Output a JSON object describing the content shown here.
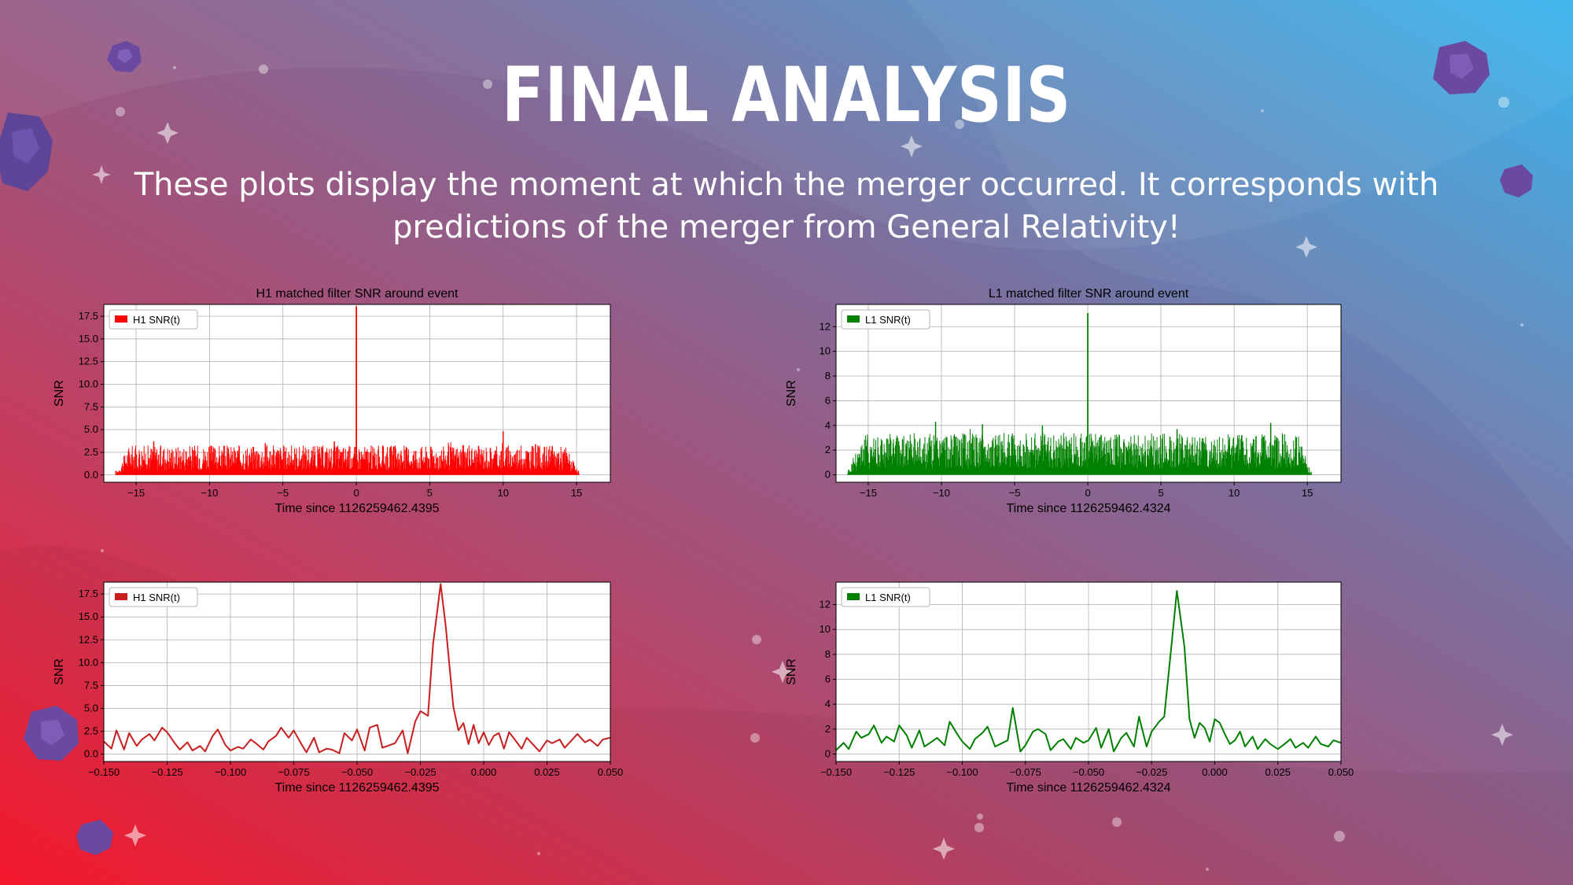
{
  "slide": {
    "title": "FINAL ANALYSIS",
    "subtitle": "These plots display the moment at which the merger occurred. It corresponds with predictions of the merger from General Relativity!"
  },
  "colors": {
    "h1": "#ff0000",
    "h1_zoom": "#c81e1e",
    "l1": "#008000",
    "text": "#ffffff"
  },
  "chart_data": [
    {
      "type": "area",
      "title": "H1 matched filter SNR around event",
      "xlabel": "Time since 1126259462.4395",
      "ylabel": "SNR",
      "legend": "H1 SNR(t)",
      "legend_position": "top-left",
      "grid": true,
      "xlim": [
        -17.2,
        17.3
      ],
      "ylim": [
        -0.8,
        18.8
      ],
      "xticks": [
        -15,
        -10,
        -5,
        0,
        5,
        10,
        15
      ],
      "xtick_labels": [
        "−15",
        "−10",
        "−5",
        "0",
        "5",
        "10",
        "15"
      ],
      "yticks": [
        0.0,
        2.5,
        5.0,
        7.5,
        10.0,
        12.5,
        15.0,
        17.5
      ],
      "ytick_labels": [
        "0.0",
        "2.5",
        "5.0",
        "7.5",
        "10.0",
        "12.5",
        "15.0",
        "17.5"
      ],
      "series": [
        {
          "name": "H1 SNR(t)",
          "noise_range": [
            -16.4,
            15.2
          ],
          "noise_typical_max": 3.2,
          "noise_peaks": [
            [
              -13.8,
              3.7
            ],
            [
              -6.2,
              3.5
            ],
            [
              -1.5,
              3.7
            ],
            [
              10.0,
              4.8
            ],
            [
              12.2,
              3.4
            ]
          ],
          "event_x": 0.0,
          "event_peak": 18.6
        }
      ]
    },
    {
      "type": "area",
      "title": "L1 matched filter SNR around event",
      "xlabel": "Time since 1126259462.4324",
      "ylabel": "SNR",
      "legend": "L1 SNR(t)",
      "legend_position": "top-left",
      "grid": true,
      "xlim": [
        -17.2,
        17.3
      ],
      "ylim": [
        -0.6,
        13.8
      ],
      "xticks": [
        -15,
        -10,
        -5,
        0,
        5,
        10,
        15
      ],
      "xtick_labels": [
        "−15",
        "−10",
        "−5",
        "0",
        "5",
        "10",
        "15"
      ],
      "yticks": [
        0,
        2,
        4,
        6,
        8,
        10,
        12
      ],
      "ytick_labels": [
        "0",
        "2",
        "4",
        "6",
        "8",
        "10",
        "12"
      ],
      "series": [
        {
          "name": "L1 SNR(t)",
          "noise_range": [
            -16.4,
            15.3
          ],
          "noise_typical_max": 3.3,
          "noise_peaks": [
            [
              -10.4,
              4.3
            ],
            [
              -7.2,
              4.1
            ],
            [
              -3.1,
              4.0
            ],
            [
              6.1,
              3.7
            ],
            [
              12.5,
              4.2
            ]
          ],
          "event_x": 0.0,
          "event_peak": 13.1
        }
      ]
    },
    {
      "type": "line",
      "title": "",
      "xlabel": "Time since 1126259462.4395",
      "ylabel": "SNR",
      "legend": "H1 SNR(t)",
      "legend_position": "top-left",
      "grid": true,
      "xlim": [
        -0.15,
        0.05
      ],
      "ylim": [
        -0.8,
        18.8
      ],
      "xticks": [
        -0.15,
        -0.125,
        -0.1,
        -0.075,
        -0.05,
        -0.025,
        0.0,
        0.025,
        0.05
      ],
      "xtick_labels": [
        "−0.150",
        "−0.125",
        "−0.100",
        "−0.075",
        "−0.050",
        "−0.025",
        "0.000",
        "0.025",
        "0.050"
      ],
      "yticks": [
        0.0,
        2.5,
        5.0,
        7.5,
        10.0,
        12.5,
        15.0,
        17.5
      ],
      "ytick_labels": [
        "0.0",
        "2.5",
        "5.0",
        "7.5",
        "10.0",
        "12.5",
        "15.0",
        "17.5"
      ],
      "series": [
        {
          "name": "H1 SNR(t)",
          "x": [
            -0.15,
            -0.147,
            -0.145,
            -0.142,
            -0.14,
            -0.137,
            -0.135,
            -0.132,
            -0.13,
            -0.127,
            -0.125,
            -0.122,
            -0.12,
            -0.117,
            -0.115,
            -0.112,
            -0.11,
            -0.107,
            -0.105,
            -0.102,
            -0.1,
            -0.097,
            -0.095,
            -0.092,
            -0.09,
            -0.087,
            -0.085,
            -0.082,
            -0.08,
            -0.077,
            -0.075,
            -0.072,
            -0.07,
            -0.067,
            -0.065,
            -0.062,
            -0.06,
            -0.057,
            -0.055,
            -0.052,
            -0.05,
            -0.047,
            -0.045,
            -0.042,
            -0.04,
            -0.037,
            -0.035,
            -0.032,
            -0.03,
            -0.027,
            -0.025,
            -0.022,
            -0.02,
            -0.017,
            -0.015,
            -0.012,
            -0.01,
            -0.008,
            -0.006,
            -0.004,
            -0.002,
            0.0,
            0.002,
            0.004,
            0.006,
            0.008,
            0.01,
            0.012,
            0.015,
            0.017,
            0.02,
            0.022,
            0.025,
            0.027,
            0.03,
            0.032,
            0.035,
            0.037,
            0.04,
            0.042,
            0.045,
            0.047,
            0.05
          ],
          "y": [
            1.4,
            0.6,
            2.6,
            0.5,
            2.3,
            0.9,
            1.6,
            2.2,
            1.5,
            2.9,
            2.4,
            1.2,
            0.5,
            1.3,
            0.4,
            0.9,
            0.3,
            2.0,
            2.7,
            1.0,
            0.4,
            0.8,
            0.6,
            1.6,
            1.2,
            0.5,
            1.4,
            2.0,
            2.9,
            1.8,
            2.6,
            1.1,
            0.2,
            1.8,
            0.2,
            0.6,
            0.5,
            0.1,
            2.3,
            1.5,
            2.7,
            0.4,
            2.9,
            3.2,
            0.7,
            1.0,
            1.2,
            2.6,
            0.1,
            3.6,
            4.7,
            4.2,
            12.0,
            18.6,
            14.0,
            5.2,
            2.6,
            3.4,
            1.1,
            3.2,
            1.2,
            2.4,
            1.0,
            2.0,
            2.3,
            0.6,
            2.4,
            1.7,
            0.6,
            1.8,
            0.9,
            0.3,
            1.5,
            1.2,
            1.6,
            0.7,
            1.6,
            2.2,
            1.3,
            1.6,
            0.9,
            1.6,
            1.8
          ]
        }
      ]
    },
    {
      "type": "line",
      "title": "",
      "xlabel": "Time since 1126259462.4324",
      "ylabel": "SNR",
      "legend": "L1 SNR(t)",
      "legend_position": "top-left",
      "grid": true,
      "xlim": [
        -0.15,
        0.05
      ],
      "ylim": [
        -0.6,
        13.8
      ],
      "xticks": [
        -0.15,
        -0.125,
        -0.1,
        -0.075,
        -0.05,
        -0.025,
        0.0,
        0.025,
        0.05
      ],
      "xtick_labels": [
        "−0.150",
        "−0.125",
        "−0.100",
        "−0.075",
        "−0.050",
        "−0.025",
        "0.000",
        "0.025",
        "0.050"
      ],
      "yticks": [
        0,
        2,
        4,
        6,
        8,
        10,
        12
      ],
      "ytick_labels": [
        "0",
        "2",
        "4",
        "6",
        "8",
        "10",
        "12"
      ],
      "series": [
        {
          "name": "L1 SNR(t)",
          "x": [
            -0.15,
            -0.147,
            -0.145,
            -0.142,
            -0.14,
            -0.137,
            -0.135,
            -0.132,
            -0.13,
            -0.127,
            -0.125,
            -0.122,
            -0.12,
            -0.117,
            -0.115,
            -0.112,
            -0.11,
            -0.107,
            -0.105,
            -0.102,
            -0.1,
            -0.097,
            -0.095,
            -0.092,
            -0.09,
            -0.087,
            -0.085,
            -0.082,
            -0.08,
            -0.077,
            -0.075,
            -0.072,
            -0.07,
            -0.067,
            -0.065,
            -0.062,
            -0.06,
            -0.057,
            -0.055,
            -0.052,
            -0.05,
            -0.047,
            -0.045,
            -0.042,
            -0.04,
            -0.037,
            -0.035,
            -0.032,
            -0.03,
            -0.027,
            -0.025,
            -0.022,
            -0.02,
            -0.017,
            -0.015,
            -0.012,
            -0.01,
            -0.008,
            -0.006,
            -0.004,
            -0.002,
            0.0,
            0.002,
            0.004,
            0.006,
            0.008,
            0.01,
            0.012,
            0.015,
            0.017,
            0.02,
            0.022,
            0.025,
            0.027,
            0.03,
            0.032,
            0.035,
            0.037,
            0.04,
            0.042,
            0.045,
            0.047,
            0.05
          ],
          "y": [
            0.3,
            0.9,
            0.4,
            1.8,
            1.3,
            1.6,
            2.3,
            0.9,
            1.4,
            1.0,
            2.3,
            1.5,
            0.5,
            1.9,
            0.6,
            1.0,
            1.3,
            0.7,
            2.6,
            1.6,
            1.0,
            0.4,
            1.2,
            1.7,
            2.2,
            0.6,
            0.8,
            1.1,
            3.7,
            0.2,
            0.7,
            1.8,
            2.0,
            1.6,
            0.3,
            1.0,
            1.2,
            0.4,
            1.3,
            0.9,
            1.1,
            2.1,
            0.5,
            2.0,
            0.2,
            1.3,
            1.7,
            0.6,
            3.0,
            0.6,
            1.8,
            2.6,
            3.0,
            9.0,
            13.1,
            8.6,
            2.8,
            1.3,
            2.5,
            2.1,
            1.0,
            2.8,
            2.5,
            1.6,
            0.8,
            1.1,
            1.8,
            0.6,
            1.4,
            0.4,
            1.2,
            0.8,
            0.4,
            0.7,
            1.2,
            0.5,
            0.9,
            0.5,
            1.4,
            0.8,
            0.6,
            1.1,
            0.9
          ]
        }
      ]
    }
  ]
}
